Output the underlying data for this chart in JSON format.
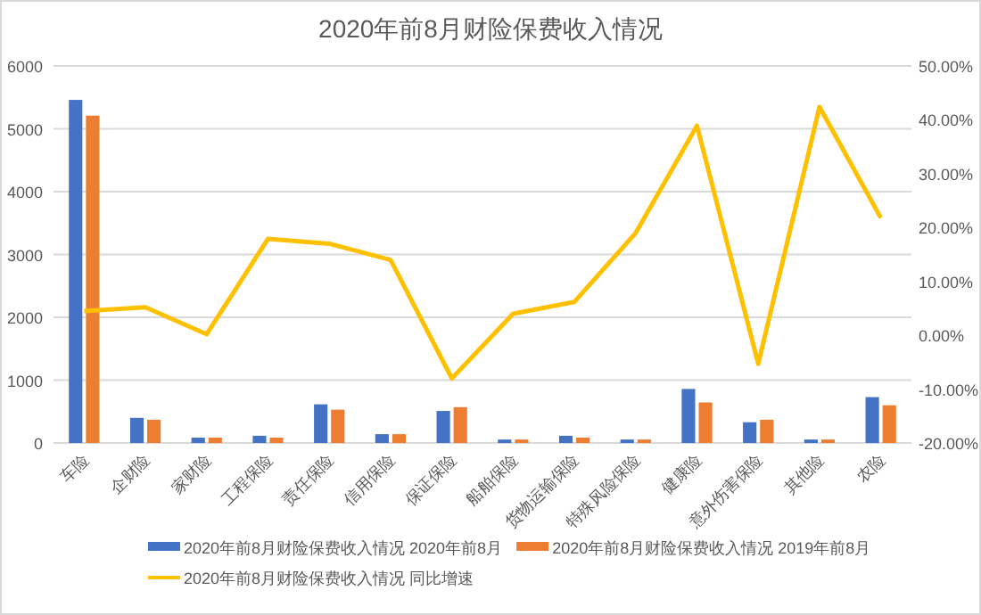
{
  "chart_data": {
    "type": "bar",
    "title": "2020年前8月财险保费收入情况",
    "categories": [
      "车险",
      "企财险",
      "家财险",
      "工程保险",
      "责任保险",
      "信用保险",
      "保证保险",
      "船舶保险",
      "货物运输保险",
      "特殊风险保险",
      "健康险",
      "意外伤害保险",
      "其他险",
      "农险"
    ],
    "series": [
      {
        "name": "2020年前8月财险保费收入情况 2020年前8月",
        "color": "#4472c4",
        "values": [
          5460,
          400,
          85,
          115,
          615,
          140,
          510,
          55,
          115,
          55,
          860,
          330,
          55,
          730
        ]
      },
      {
        "name": "2020年前8月财险保费收入情况 2019年前8月",
        "color": "#ed7d31",
        "values": [
          5210,
          370,
          85,
          85,
          530,
          140,
          570,
          55,
          85,
          55,
          645,
          370,
          55,
          600
        ]
      },
      {
        "name": "2020年前8月财险保费收入情况 同比增速",
        "type": "line",
        "axis": "y2",
        "color": "#ffc000",
        "values": [
          4.5,
          5.2,
          0.2,
          17.9,
          17.0,
          14.0,
          -8.0,
          4.0,
          6.2,
          19.0,
          38.9,
          -5.3,
          42.4,
          21.8
        ]
      }
    ],
    "ylim": [
      0,
      6000
    ],
    "yticks": [
      0,
      1000,
      2000,
      3000,
      4000,
      5000,
      6000
    ],
    "y2lim": [
      -20,
      50
    ],
    "y2ticks": [
      {
        "value": -20,
        "label": "-20.00%"
      },
      {
        "value": -10,
        "label": "-10.00%"
      },
      {
        "value": 0,
        "label": "0.00%"
      },
      {
        "value": 10,
        "label": "10.00%"
      },
      {
        "value": 20,
        "label": "20.00%"
      },
      {
        "value": 30,
        "label": "30.00%"
      },
      {
        "value": 40,
        "label": "40.00%"
      },
      {
        "value": 50,
        "label": "50.00%"
      }
    ],
    "grid": "y",
    "legend": "bottom"
  }
}
